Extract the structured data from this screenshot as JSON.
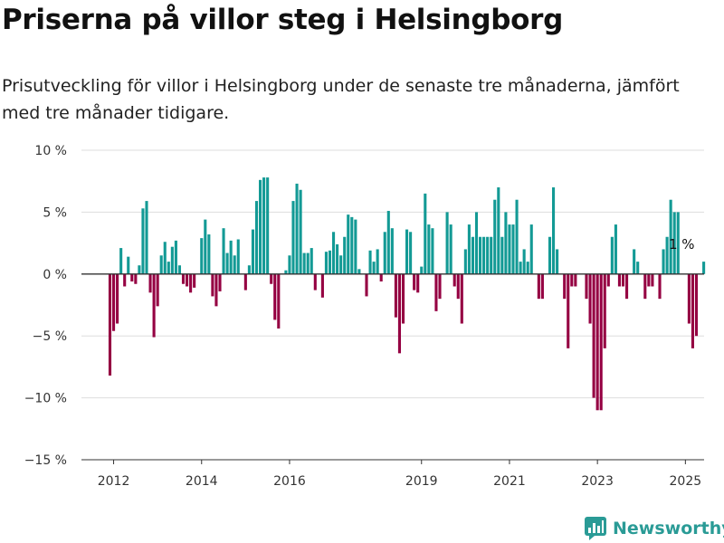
{
  "title": "Priserna på villor steg i Helsingborg",
  "subtitle": "Prisutveckling för villor i Helsingborg under de senaste tre månaderna, jämfört med tre månader tidigare.",
  "brand": "Newsworthy",
  "colors": {
    "positive": "#139a95",
    "negative": "#950042",
    "grid": "#dddddd",
    "axis": "#333333",
    "brand": "#2a9b96"
  },
  "chart_data": {
    "type": "bar",
    "ylim": [
      -15,
      10
    ],
    "yticks": [
      10,
      5,
      0,
      -5,
      -10,
      -15
    ],
    "ytick_labels": [
      "10 %",
      "5 %",
      "0 %",
      "−5 %",
      "−10 %",
      "−15 %"
    ],
    "xtick_labels": [
      "2012",
      "2014",
      "2016",
      "2019",
      "2021",
      "2023",
      "2025"
    ],
    "xtick_positions": [
      1,
      25,
      49,
      85,
      109,
      133,
      157
    ],
    "grid": true,
    "legend": "none",
    "annotation": {
      "text": "1 %",
      "index": 156
    },
    "values": [
      -8.2,
      -4.6,
      -4.0,
      2.1,
      -1.0,
      1.4,
      -0.6,
      -0.8,
      0.7,
      5.3,
      5.9,
      -1.5,
      -5.1,
      -2.6,
      1.5,
      2.6,
      1.0,
      2.2,
      2.7,
      0.7,
      -0.8,
      -1.0,
      -1.5,
      -1.1,
      0.0,
      2.9,
      4.4,
      3.2,
      -1.8,
      -2.6,
      -1.4,
      3.7,
      1.7,
      2.7,
      1.5,
      2.8,
      0.0,
      -1.3,
      0.7,
      3.6,
      5.9,
      7.6,
      7.8,
      7.8,
      -0.8,
      -3.7,
      -4.4,
      0.0,
      0.3,
      1.5,
      5.9,
      7.3,
      6.8,
      1.7,
      1.7,
      2.1,
      -1.3,
      0.0,
      -1.9,
      1.8,
      1.9,
      3.4,
      2.4,
      1.5,
      3.0,
      4.8,
      4.6,
      4.4,
      0.4,
      0.0,
      -1.8,
      1.9,
      1.0,
      2.0,
      -0.6,
      3.4,
      5.1,
      3.7,
      -3.5,
      -6.4,
      -4.0,
      3.6,
      3.4,
      -1.3,
      -1.5,
      0.6,
      6.5,
      4.0,
      3.7,
      -3.0,
      -2.0,
      0.0,
      5.0,
      4.0,
      -1.0,
      -2.0,
      -4.0,
      2.0,
      4.0,
      3.0,
      5.0,
      3.0,
      3.0,
      3.0,
      3.0,
      6.0,
      7.0,
      3.0,
      5.0,
      4.0,
      4.0,
      6.0,
      1.0,
      2.0,
      1.0,
      4.0,
      0.0,
      -2.0,
      -2.0,
      0.0,
      3.0,
      7.0,
      2.0,
      0.0,
      -2.0,
      -6.0,
      -1.0,
      -1.0,
      0.0,
      0.0,
      -2.0,
      -4.0,
      -10.0,
      -11.0,
      -11.0,
      -6.0,
      -1.0,
      3.0,
      4.0,
      -1.0,
      -1.0,
      -2.0,
      0.0,
      2.0,
      1.0,
      0.0,
      -2.0,
      -1.0,
      -1.0,
      0.0,
      -2.0,
      2.0,
      3.0,
      6.0,
      5.0,
      5.0,
      0.0,
      0.0,
      -4.0,
      -6.0,
      -5.0,
      0.0,
      1.0
    ]
  }
}
